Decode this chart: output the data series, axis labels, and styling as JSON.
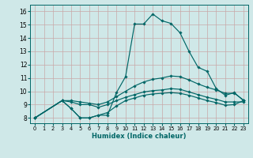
{
  "xlabel": "Humidex (Indice chaleur)",
  "bg_color": "#cfe8e8",
  "grid_color": "#b0d0d0",
  "line_color": "#006666",
  "xlim": [
    -0.5,
    23.5
  ],
  "ylim": [
    7.6,
    16.5
  ],
  "yticks": [
    8,
    9,
    10,
    11,
    12,
    13,
    14,
    15,
    16
  ],
  "xticks": [
    0,
    1,
    2,
    3,
    4,
    5,
    6,
    7,
    8,
    9,
    10,
    11,
    12,
    13,
    14,
    15,
    16,
    17,
    18,
    19,
    20,
    21,
    22,
    23
  ],
  "curves": {
    "max": {
      "x": [
        0,
        3,
        4,
        5,
        6,
        7,
        8,
        9,
        10,
        11,
        12,
        13,
        14,
        15,
        16,
        17,
        18,
        19,
        20,
        21,
        22,
        23
      ],
      "y": [
        8.0,
        9.3,
        8.7,
        8.0,
        8.0,
        8.2,
        8.2,
        9.9,
        11.1,
        15.05,
        15.05,
        15.8,
        15.3,
        15.1,
        14.4,
        13.0,
        11.8,
        11.5,
        10.2,
        9.7,
        9.9,
        9.3
      ]
    },
    "upper": {
      "x": [
        0,
        3,
        4,
        5,
        6,
        7,
        8,
        9,
        10,
        11,
        12,
        13,
        14,
        15,
        16,
        17,
        18,
        19,
        20,
        21,
        22,
        23
      ],
      "y": [
        8.0,
        9.3,
        9.3,
        9.2,
        9.1,
        9.0,
        9.2,
        9.6,
        10.0,
        10.4,
        10.7,
        10.9,
        11.0,
        11.15,
        11.1,
        10.85,
        10.55,
        10.3,
        10.1,
        9.85,
        9.85,
        9.35
      ]
    },
    "lower": {
      "x": [
        0,
        3,
        4,
        5,
        6,
        7,
        8,
        9,
        10,
        11,
        12,
        13,
        14,
        15,
        16,
        17,
        18,
        19,
        20,
        21,
        22,
        23
      ],
      "y": [
        8.0,
        9.3,
        9.2,
        9.0,
        9.0,
        8.8,
        9.0,
        9.3,
        9.55,
        9.75,
        9.95,
        10.05,
        10.1,
        10.2,
        10.15,
        9.95,
        9.75,
        9.55,
        9.4,
        9.2,
        9.2,
        9.2
      ]
    },
    "min": {
      "x": [
        0,
        3,
        4,
        5,
        6,
        7,
        8,
        9,
        10,
        11,
        12,
        13,
        14,
        15,
        16,
        17,
        18,
        19,
        20,
        21,
        22,
        23
      ],
      "y": [
        8.0,
        9.3,
        8.7,
        8.0,
        8.0,
        8.2,
        8.4,
        8.9,
        9.3,
        9.5,
        9.7,
        9.8,
        9.85,
        9.9,
        9.85,
        9.7,
        9.5,
        9.3,
        9.15,
        8.95,
        9.0,
        9.3
      ]
    }
  }
}
